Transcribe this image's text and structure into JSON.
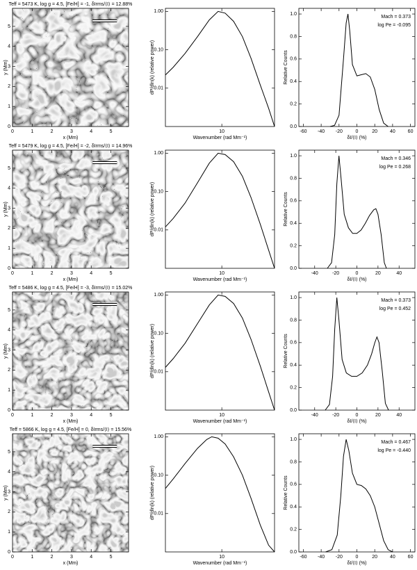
{
  "chart_data": [
    {
      "type": "image",
      "title": "Teff = 5473 K, log g = 4.5, [Fe/H] = -1, δIrms/⟨I⟩ = 12.88%",
      "xlabel": "x (Mm)",
      "ylabel": "y (Mm)",
      "xlim": [
        0,
        5.9
      ],
      "ylim": [
        0,
        5.9
      ],
      "xticks": [
        0,
        1,
        2,
        3,
        4,
        5
      ],
      "yticks": [
        0,
        1,
        2,
        3,
        4,
        5
      ]
    },
    {
      "type": "line",
      "xlabel": "Wavenumber (rad Mm⁻¹)",
      "ylabel": "dP/dln(k) (relative power)",
      "xlog": true,
      "ylog": true,
      "xlim": [
        2,
        45
      ],
      "ylim": [
        0.001,
        1.2
      ],
      "xticks": [
        10
      ],
      "yticks": [
        {
          "value": 1,
          "label": "1.00"
        },
        {
          "value": 0.1,
          "label": "0.10"
        },
        {
          "value": 0.01,
          "label": "0.01"
        }
      ],
      "x": [
        2,
        2.5,
        3.5,
        5,
        7,
        9,
        11,
        14,
        18,
        23,
        30,
        38,
        45
      ],
      "values": [
        0.022,
        0.035,
        0.08,
        0.22,
        0.6,
        1.0,
        0.9,
        0.55,
        0.22,
        0.06,
        0.012,
        0.003,
        0.001
      ]
    },
    {
      "type": "line",
      "xlabel": "δI/⟨I⟩ (%)",
      "ylabel": "Relative Counts",
      "xlim": [
        -65,
        65
      ],
      "ylim": [
        0,
        1.05
      ],
      "xticks": [
        -60,
        -40,
        -20,
        0,
        20,
        40,
        60
      ],
      "yticks": [
        {
          "value": 0,
          "label": "0.0"
        },
        {
          "value": 0.2,
          "label": "0.2"
        },
        {
          "value": 0.4,
          "label": "0.4"
        },
        {
          "value": 0.6,
          "label": "0.6"
        },
        {
          "value": 0.8,
          "label": "0.8"
        },
        {
          "value": 1,
          "label": "1.0"
        }
      ],
      "x": [
        -30,
        -25,
        -20,
        -15,
        -12,
        -10,
        -8,
        -5,
        0,
        5,
        10,
        15,
        20,
        25,
        30,
        35
      ],
      "values": [
        0,
        0.01,
        0.1,
        0.6,
        0.92,
        1.0,
        0.85,
        0.55,
        0.45,
        0.46,
        0.47,
        0.44,
        0.33,
        0.15,
        0.03,
        0
      ],
      "annotations": [
        "Mach = 0.373",
        "log Pe = -0.095"
      ]
    },
    {
      "type": "image",
      "title": "Teff = 5479 K, log g = 4.5, [Fe/H] = -2, δIrms/⟨I⟩ = 14.96%",
      "xlabel": "x (Mm)",
      "ylabel": "y (Mm)",
      "xlim": [
        0,
        5.9
      ],
      "ylim": [
        0,
        5.9
      ],
      "xticks": [
        0,
        1,
        2,
        3,
        4,
        5
      ],
      "yticks": [
        0,
        1,
        2,
        3,
        4,
        5
      ]
    },
    {
      "type": "line",
      "xlabel": "Wavenumber (rad Mm⁻¹)",
      "ylabel": "dP/dln(k) (relative power)",
      "xlog": true,
      "ylog": true,
      "xlim": [
        2,
        45
      ],
      "ylim": [
        0.001,
        1.2
      ],
      "xticks": [
        10
      ],
      "yticks": [
        {
          "value": 1,
          "label": "1.00"
        },
        {
          "value": 0.1,
          "label": "0.10"
        },
        {
          "value": 0.01,
          "label": "0.01"
        }
      ],
      "x": [
        2,
        2.5,
        3.5,
        5,
        7,
        9,
        11,
        14,
        18,
        23,
        30,
        38,
        45
      ],
      "values": [
        0.012,
        0.02,
        0.05,
        0.17,
        0.55,
        1.0,
        0.92,
        0.6,
        0.25,
        0.07,
        0.014,
        0.003,
        0.001
      ]
    },
    {
      "type": "line",
      "xlabel": "δI/⟨I⟩ (%)",
      "ylabel": "Relative Counts",
      "xlim": [
        -55,
        55
      ],
      "ylim": [
        0,
        1.05
      ],
      "xticks": [
        -40,
        -20,
        0,
        20,
        40
      ],
      "yticks": [
        {
          "value": 0,
          "label": "0.0"
        },
        {
          "value": 0.2,
          "label": "0.2"
        },
        {
          "value": 0.4,
          "label": "0.4"
        },
        {
          "value": 0.6,
          "label": "0.6"
        },
        {
          "value": 0.8,
          "label": "0.8"
        },
        {
          "value": 1,
          "label": "1.0"
        }
      ],
      "x": [
        -28,
        -24,
        -21,
        -19,
        -17,
        -15,
        -12,
        -8,
        -4,
        0,
        4,
        8,
        12,
        16,
        18,
        20,
        23,
        26,
        28
      ],
      "values": [
        0,
        0.05,
        0.3,
        0.75,
        1.0,
        0.8,
        0.48,
        0.36,
        0.31,
        0.31,
        0.34,
        0.4,
        0.47,
        0.52,
        0.53,
        0.48,
        0.3,
        0.05,
        0
      ],
      "annotations": [
        "Mach = 0.346",
        "log Pe = 0.268"
      ]
    },
    {
      "type": "image",
      "title": "Teff = 5486 K, log g = 4.5, [Fe/H] = -3, δIrms/⟨I⟩ = 15.02%",
      "xlabel": "x (Mm)",
      "ylabel": "y (Mm)",
      "xlim": [
        0,
        5.9
      ],
      "ylim": [
        0,
        5.9
      ],
      "xticks": [
        0,
        1,
        2,
        3,
        4,
        5
      ],
      "yticks": [
        0,
        1,
        2,
        3,
        4,
        5
      ]
    },
    {
      "type": "line",
      "xlabel": "Wavenumber (rad Mm⁻¹)",
      "ylabel": "dP/dln(k) (relative power)",
      "xlog": true,
      "ylog": true,
      "xlim": [
        2,
        45
      ],
      "ylim": [
        0.001,
        1.2
      ],
      "xticks": [
        10
      ],
      "yticks": [
        {
          "value": 1,
          "label": "1.00"
        },
        {
          "value": 0.1,
          "label": "0.10"
        },
        {
          "value": 0.01,
          "label": "0.01"
        }
      ],
      "x": [
        2,
        2.5,
        3.5,
        5,
        7,
        9,
        11,
        14,
        18,
        23,
        30,
        38,
        45
      ],
      "values": [
        0.013,
        0.022,
        0.055,
        0.18,
        0.55,
        1.0,
        0.92,
        0.6,
        0.25,
        0.07,
        0.014,
        0.003,
        0.001
      ]
    },
    {
      "type": "line",
      "xlabel": "δI/⟨I⟩ (%)",
      "ylabel": "Relative Counts",
      "xlim": [
        -55,
        55
      ],
      "ylim": [
        0,
        1.05
      ],
      "xticks": [
        -40,
        -20,
        0,
        20,
        40
      ],
      "yticks": [
        {
          "value": 0,
          "label": "0.0"
        },
        {
          "value": 0.2,
          "label": "0.2"
        },
        {
          "value": 0.4,
          "label": "0.4"
        },
        {
          "value": 0.6,
          "label": "0.6"
        },
        {
          "value": 0.8,
          "label": "0.8"
        },
        {
          "value": 1,
          "label": "1.0"
        }
      ],
      "x": [
        -30,
        -26,
        -23,
        -21,
        -19,
        -17,
        -14,
        -10,
        -5,
        0,
        5,
        10,
        14,
        17,
        19,
        21,
        24,
        27,
        30
      ],
      "values": [
        0,
        0.05,
        0.3,
        0.72,
        1.0,
        0.8,
        0.45,
        0.33,
        0.3,
        0.3,
        0.33,
        0.4,
        0.5,
        0.6,
        0.65,
        0.6,
        0.35,
        0.06,
        0
      ],
      "annotations": [
        "Mach = 0.373",
        "log Pe = 0.452"
      ]
    },
    {
      "type": "image",
      "title": "Teff = 5866 K, log g = 4.5, [Fe/H] = 0, δIrms/⟨I⟩ = 15.56%",
      "xlabel": "x (Mm)",
      "ylabel": "y (Mm)",
      "xlim": [
        0,
        5.9
      ],
      "ylim": [
        0,
        5.9
      ],
      "xticks": [
        0,
        1,
        2,
        3,
        4,
        5
      ],
      "yticks": [
        0,
        1,
        2,
        3,
        4,
        5
      ]
    },
    {
      "type": "line",
      "xlabel": "Wavenumber (rad Mm⁻¹)",
      "ylabel": "dP/dln(k) (relative power)",
      "xlog": true,
      "ylog": true,
      "xlim": [
        2,
        45
      ],
      "ylim": [
        0.001,
        1.2
      ],
      "xticks": [
        10
      ],
      "yticks": [
        {
          "value": 1,
          "label": "1.00"
        },
        {
          "value": 0.1,
          "label": "0.10"
        },
        {
          "value": 0.01,
          "label": "0.01"
        }
      ],
      "x": [
        2,
        2.5,
        3.5,
        5,
        6.5,
        7.5,
        9,
        11,
        14,
        18,
        23,
        30,
        38,
        45
      ],
      "values": [
        0.045,
        0.08,
        0.2,
        0.5,
        0.85,
        1.0,
        0.92,
        0.65,
        0.3,
        0.1,
        0.025,
        0.005,
        0.0015,
        0.001
      ]
    },
    {
      "type": "line",
      "xlabel": "δI/⟨I⟩ (%)",
      "ylabel": "Relative Counts",
      "xlim": [
        -65,
        65
      ],
      "ylim": [
        0,
        1.05
      ],
      "xticks": [
        -60,
        -40,
        -20,
        0,
        20,
        40,
        60
      ],
      "yticks": [
        {
          "value": 0,
          "label": "0.0"
        },
        {
          "value": 0.2,
          "label": "0.2"
        },
        {
          "value": 0.4,
          "label": "0.4"
        },
        {
          "value": 0.6,
          "label": "0.6"
        },
        {
          "value": 0.8,
          "label": "0.8"
        },
        {
          "value": 1,
          "label": "1.0"
        }
      ],
      "x": [
        -35,
        -28,
        -22,
        -18,
        -15,
        -12,
        -9,
        -5,
        0,
        5,
        10,
        15,
        20,
        25,
        30,
        35,
        40
      ],
      "values": [
        0,
        0.02,
        0.15,
        0.5,
        0.85,
        1.0,
        0.9,
        0.7,
        0.6,
        0.59,
        0.56,
        0.5,
        0.4,
        0.25,
        0.1,
        0.02,
        0
      ],
      "annotations": [
        "Mach = 0.467",
        "log Pe = -0.440"
      ]
    }
  ]
}
